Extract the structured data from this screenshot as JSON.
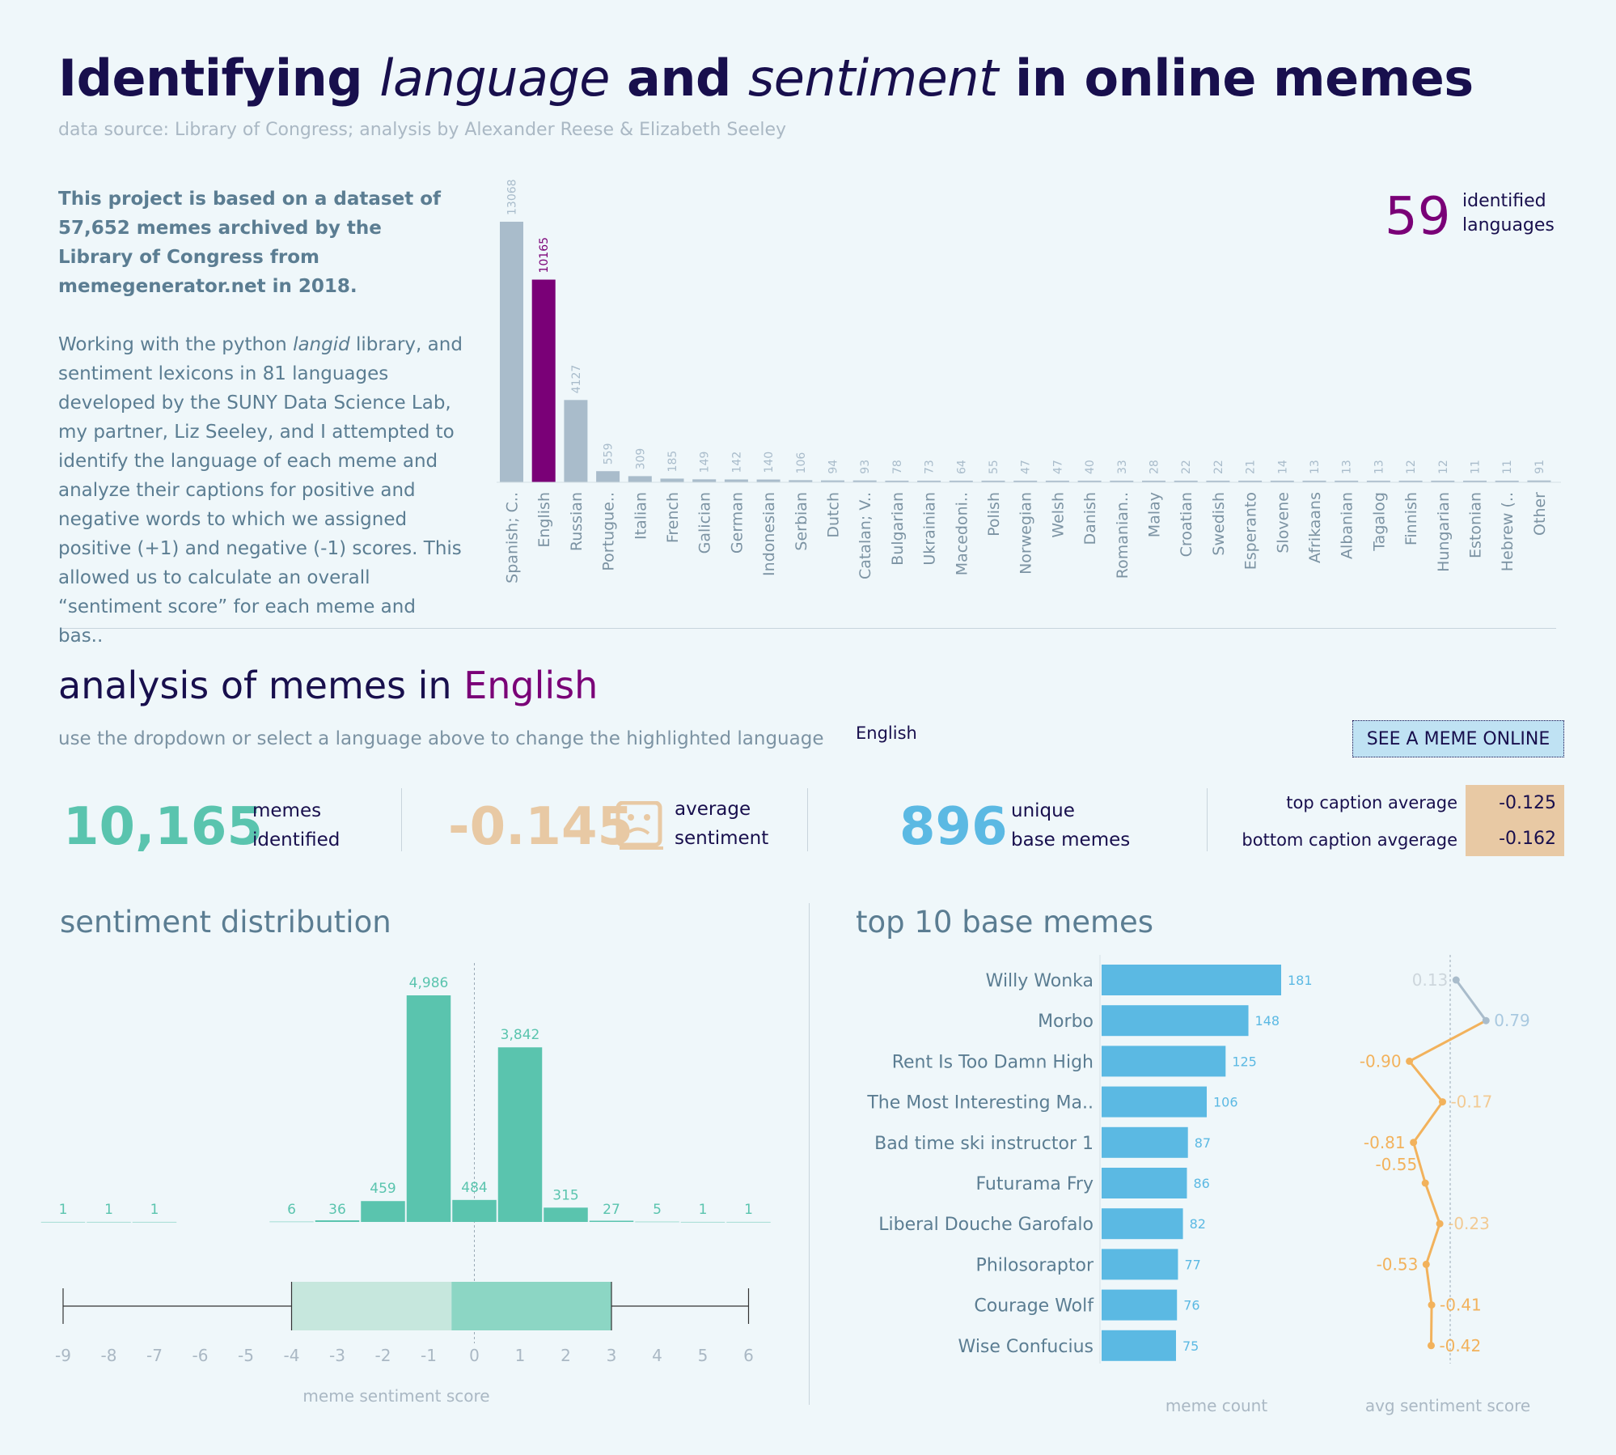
{
  "header": {
    "title_parts": [
      "Identifying ",
      "language",
      " and ",
      "sentiment",
      " in online memes"
    ],
    "source": "data source: Library of Congress; analysis by Alexander Reese & Elizabeth Seeley"
  },
  "intro": {
    "p1": "This project is based on a dataset of 57,652 memes archived by the Library of Congress from memegenerator.net in 2018.",
    "p2_a": "Working with the python ",
    "p2_em": "langid",
    "p2_b": " library, and sentiment lexicons in 81 languages developed by the SUNY Data Science Lab, my partner, Liz Seeley, and I attempted to identify the language of each meme and analyze their captions for positive and negative words to which we assigned positive (+1) and negative (-1) scores. This allowed us to calculate an overall “sentiment score” for each meme and bas.."
  },
  "languages_kpi": {
    "value": "59",
    "label_line1": "identified",
    "label_line2": "languages"
  },
  "analysis": {
    "title_prefix": "analysis of memes in ",
    "language": "English",
    "subtitle": "use the dropdown or select a language above to change the highlighted language",
    "dropdown_value": "English",
    "see_button": "SEE A MEME ONLINE"
  },
  "kpis": {
    "memes": {
      "value": "10,165",
      "l1": "memes",
      "l2": "identified",
      "color": "#5ac4ae"
    },
    "sentiment": {
      "value": "-0.145",
      "l1": "average",
      "l2": "sentiment",
      "color": "#e8c9a4"
    },
    "base": {
      "value": "896",
      "l1": "unique",
      "l2": "base memes",
      "color": "#5bb9e3"
    },
    "top_caption": {
      "label": "top caption average",
      "value": "-0.125"
    },
    "bottom_caption": {
      "label": "bottom caption avgerage",
      "value": "-0.162"
    }
  },
  "sections": {
    "distribution_title": "sentiment distribution",
    "top10_title": "top 10 base memes"
  },
  "chart_data": [
    {
      "type": "bar",
      "name": "languages",
      "categories": [
        "Spanish; C..",
        "English",
        "Russian",
        "Portugue..",
        "Italian",
        "French",
        "Galician",
        "German",
        "Indonesian",
        "Serbian",
        "Dutch",
        "Catalan; V..",
        "Bulgarian",
        "Ukrainian",
        "Macedoni..",
        "Polish",
        "Norwegian",
        "Welsh",
        "Danish",
        "Romanian..",
        "Malay",
        "Croatian",
        "Swedish",
        "Esperanto",
        "Slovene",
        "Afrikaans",
        "Albanian",
        "Tagalog",
        "Finnish",
        "Hungarian",
        "Estonian",
        "Hebrew (..",
        "Other"
      ],
      "values": [
        13068,
        10165,
        4127,
        559,
        309,
        185,
        149,
        142,
        140,
        106,
        94,
        93,
        78,
        73,
        64,
        55,
        47,
        47,
        40,
        33,
        28,
        22,
        22,
        21,
        14,
        13,
        13,
        13,
        12,
        12,
        11,
        11,
        91
      ],
      "highlight": "English",
      "colors": {
        "default": "#a9bccb",
        "highlight": "#7a0077"
      }
    },
    {
      "type": "bar",
      "name": "sentiment distribution",
      "x": [
        -9,
        -8,
        -7,
        -5,
        -4,
        -3,
        -2,
        -1,
        0,
        1,
        2,
        3,
        4,
        5,
        6
      ],
      "values": [
        1,
        1,
        1,
        0,
        6,
        36,
        459,
        4986,
        484,
        3842,
        315,
        27,
        5,
        1,
        1
      ],
      "labels": [
        "1",
        "1",
        "1",
        "",
        "6",
        "36",
        "459",
        "4,986",
        "484",
        "3,842",
        "315",
        "27",
        "5",
        "1",
        "1"
      ],
      "xlabel": "meme sentiment score",
      "xticks": [
        -9,
        -8,
        -7,
        -6,
        -5,
        -4,
        -3,
        -2,
        -1,
        0,
        1,
        2,
        3,
        4,
        5,
        6
      ],
      "xlim": [
        -9,
        6
      ],
      "boxplot": {
        "min": -9,
        "q1": -4,
        "median": -0.5,
        "q3": 3,
        "max": 6
      },
      "color": "#5ac4ae"
    },
    {
      "type": "bar",
      "name": "top 10 base memes",
      "categories": [
        "Willy Wonka",
        "Morbo",
        "Rent Is Too Damn High",
        "The Most Interesting Ma..",
        "Bad time ski instructor 1",
        "Futurama Fry",
        "Liberal Douche Garofalo",
        "Philosoraptor",
        "Courage Wolf",
        "Wise Confucius"
      ],
      "values": [
        181,
        148,
        125,
        106,
        87,
        86,
        82,
        77,
        76,
        75
      ],
      "xlabel": "meme count",
      "color": "#5bb9e3"
    },
    {
      "type": "line",
      "name": "avg sentiment score",
      "categories": [
        "Willy Wonka",
        "Morbo",
        "Rent Is Too Damn High",
        "The Most Interesting Ma..",
        "Bad time ski instructor 1",
        "Futurama Fry",
        "Liberal Douche Garofalo",
        "Philosoraptor",
        "Courage Wolf",
        "Wise Confucius"
      ],
      "values": [
        0.13,
        0.79,
        -0.9,
        -0.17,
        -0.81,
        -0.55,
        -0.23,
        -0.53,
        -0.41,
        -0.42
      ],
      "labels": [
        "0.13",
        "0.79",
        "-0.90",
        "-0.17",
        "-0.81",
        "-0.55",
        "-0.23",
        "-0.53",
        "-0.41",
        "-0.42"
      ],
      "xlabel": "avg sentiment score",
      "colors": {
        "positive": "#a9bccb",
        "negative": "#f2b25c"
      }
    }
  ]
}
